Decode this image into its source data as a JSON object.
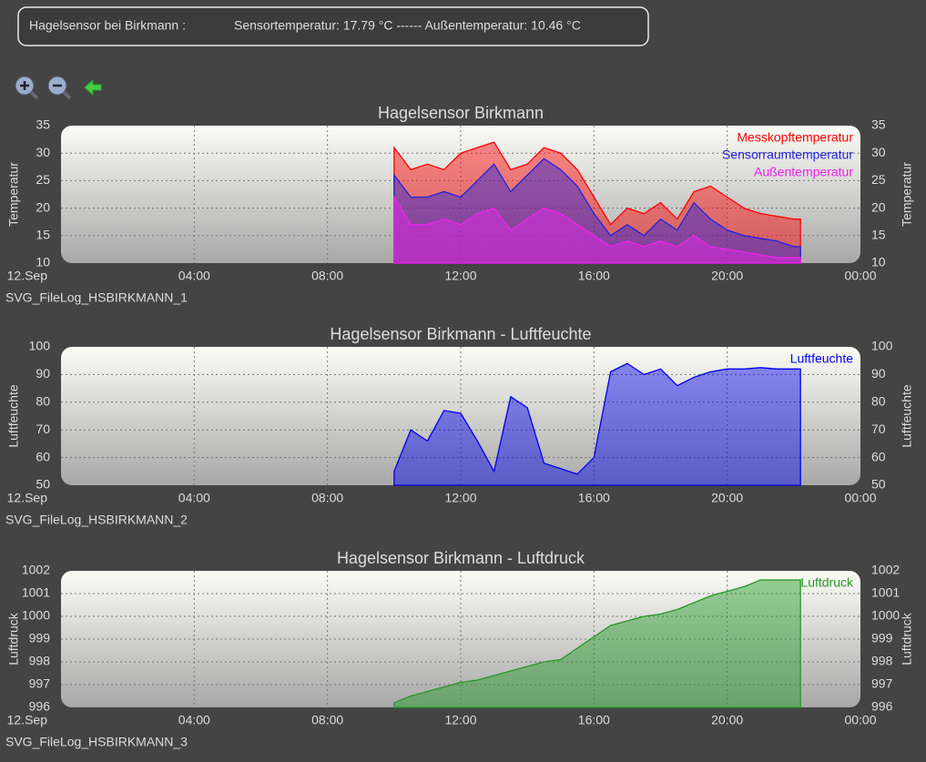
{
  "header": {
    "name": "Hagelsensor bei Birkmann :",
    "status": "Sensortemperatur: 17.79 °C ------ Außentemperatur: 10.46 °C"
  },
  "chart_data": [
    {
      "type": "area",
      "title": "Hagelsensor Birkmann",
      "ylabel": "Temperatur",
      "caption": "SVG_FileLog_HSBIRKMANN_1",
      "xlim": [
        0,
        24
      ],
      "xticks": [
        {
          "value": 0,
          "label": "12.Sep"
        },
        {
          "value": 4,
          "label": "04:00"
        },
        {
          "value": 8,
          "label": "08:00"
        },
        {
          "value": 12,
          "label": "12:00"
        },
        {
          "value": 16,
          "label": "16:00"
        },
        {
          "value": 20,
          "label": "20:00"
        },
        {
          "value": 24,
          "label": "00:00"
        }
      ],
      "ylim": [
        10,
        35
      ],
      "yticks": [
        10,
        15,
        20,
        25,
        30,
        35
      ],
      "grid": true,
      "x": [
        10,
        10.5,
        11,
        11.5,
        12,
        12.5,
        13,
        13.5,
        14,
        14.5,
        15,
        15.5,
        16,
        16.5,
        17,
        17.5,
        18,
        18.5,
        19,
        19.5,
        20,
        20.5,
        21,
        21.5,
        22,
        22.2
      ],
      "series": [
        {
          "name": "Messkopftemperatur",
          "color": "#ff0000",
          "values": [
            31,
            27,
            28,
            27,
            30,
            31,
            32,
            27,
            28,
            31,
            30,
            27,
            22,
            17,
            20,
            19,
            21,
            18,
            23,
            24,
            22,
            20,
            19,
            18.5,
            18,
            18
          ]
        },
        {
          "name": "Sensorraumtemperatur",
          "color": "#2222dd",
          "values": [
            26,
            22,
            22,
            23,
            22,
            25,
            28,
            23,
            26,
            29,
            27,
            24,
            19,
            15,
            17,
            15,
            18,
            16,
            21,
            18,
            16,
            15,
            14.5,
            14,
            13,
            13
          ]
        },
        {
          "name": "Außentemperatur",
          "color": "#ee22ee",
          "values": [
            22,
            17,
            17,
            18,
            17,
            19,
            20,
            16,
            18,
            20,
            19,
            17,
            15,
            13,
            14,
            13,
            14,
            13,
            15,
            13,
            12.5,
            12,
            11.5,
            11,
            11,
            11
          ]
        }
      ]
    },
    {
      "type": "area",
      "title": "Hagelsensor Birkmann - Luftfeuchte",
      "ylabel": "Luftfeuchte",
      "caption": "SVG_FileLog_HSBIRKMANN_2",
      "xlim": [
        0,
        24
      ],
      "xticks": [
        {
          "value": 0,
          "label": "12.Sep"
        },
        {
          "value": 4,
          "label": "04:00"
        },
        {
          "value": 8,
          "label": "08:00"
        },
        {
          "value": 12,
          "label": "12:00"
        },
        {
          "value": 16,
          "label": "16:00"
        },
        {
          "value": 20,
          "label": "20:00"
        },
        {
          "value": 24,
          "label": "00:00"
        }
      ],
      "ylim": [
        50,
        100
      ],
      "yticks": [
        50,
        60,
        70,
        80,
        90,
        100
      ],
      "grid": true,
      "x": [
        10,
        10.5,
        11,
        11.5,
        12,
        12.5,
        13,
        13.5,
        14,
        14.5,
        15,
        15.5,
        16,
        16.5,
        17,
        17.5,
        18,
        18.5,
        19,
        19.5,
        20,
        20.5,
        21,
        21.5,
        22,
        22.2
      ],
      "series": [
        {
          "name": "Luftfeuchte",
          "color": "#0000ee",
          "values": [
            55,
            70,
            66,
            77,
            76,
            66,
            55,
            82,
            78,
            58,
            56,
            54,
            60,
            91,
            94,
            90,
            92,
            86,
            89,
            91,
            92,
            92,
            92.5,
            92,
            92,
            92
          ]
        }
      ]
    },
    {
      "type": "area",
      "title": "Hagelsensor Birkmann - Luftdruck",
      "ylabel": "Luftdruck",
      "caption": "SVG_FileLog_HSBIRKMANN_3",
      "xlim": [
        0,
        24
      ],
      "xticks": [
        {
          "value": 0,
          "label": "12.Sep"
        },
        {
          "value": 4,
          "label": "04:00"
        },
        {
          "value": 8,
          "label": "08:00"
        },
        {
          "value": 12,
          "label": "12:00"
        },
        {
          "value": 16,
          "label": "16:00"
        },
        {
          "value": 20,
          "label": "20:00"
        },
        {
          "value": 24,
          "label": "00:00"
        }
      ],
      "ylim": [
        996,
        1002
      ],
      "yticks": [
        996,
        997,
        998,
        999,
        1000,
        1001,
        1002
      ],
      "grid": true,
      "x": [
        10,
        10.5,
        11,
        11.5,
        12,
        12.5,
        13,
        13.5,
        14,
        14.5,
        15,
        15.5,
        16,
        16.5,
        17,
        17.5,
        18,
        18.5,
        19,
        19.5,
        20,
        20.5,
        21,
        21.5,
        22,
        22.2
      ],
      "series": [
        {
          "name": "Luftdruck",
          "color": "#229922",
          "values": [
            996.2,
            996.5,
            996.7,
            996.9,
            997.1,
            997.2,
            997.4,
            997.6,
            997.8,
            998.0,
            998.1,
            998.6,
            999.1,
            999.6,
            999.8,
            1000.0,
            1000.1,
            1000.3,
            1000.6,
            1000.9,
            1001.1,
            1001.3,
            1001.6,
            1001.6,
            1001.6,
            1001.6
          ]
        }
      ]
    }
  ]
}
